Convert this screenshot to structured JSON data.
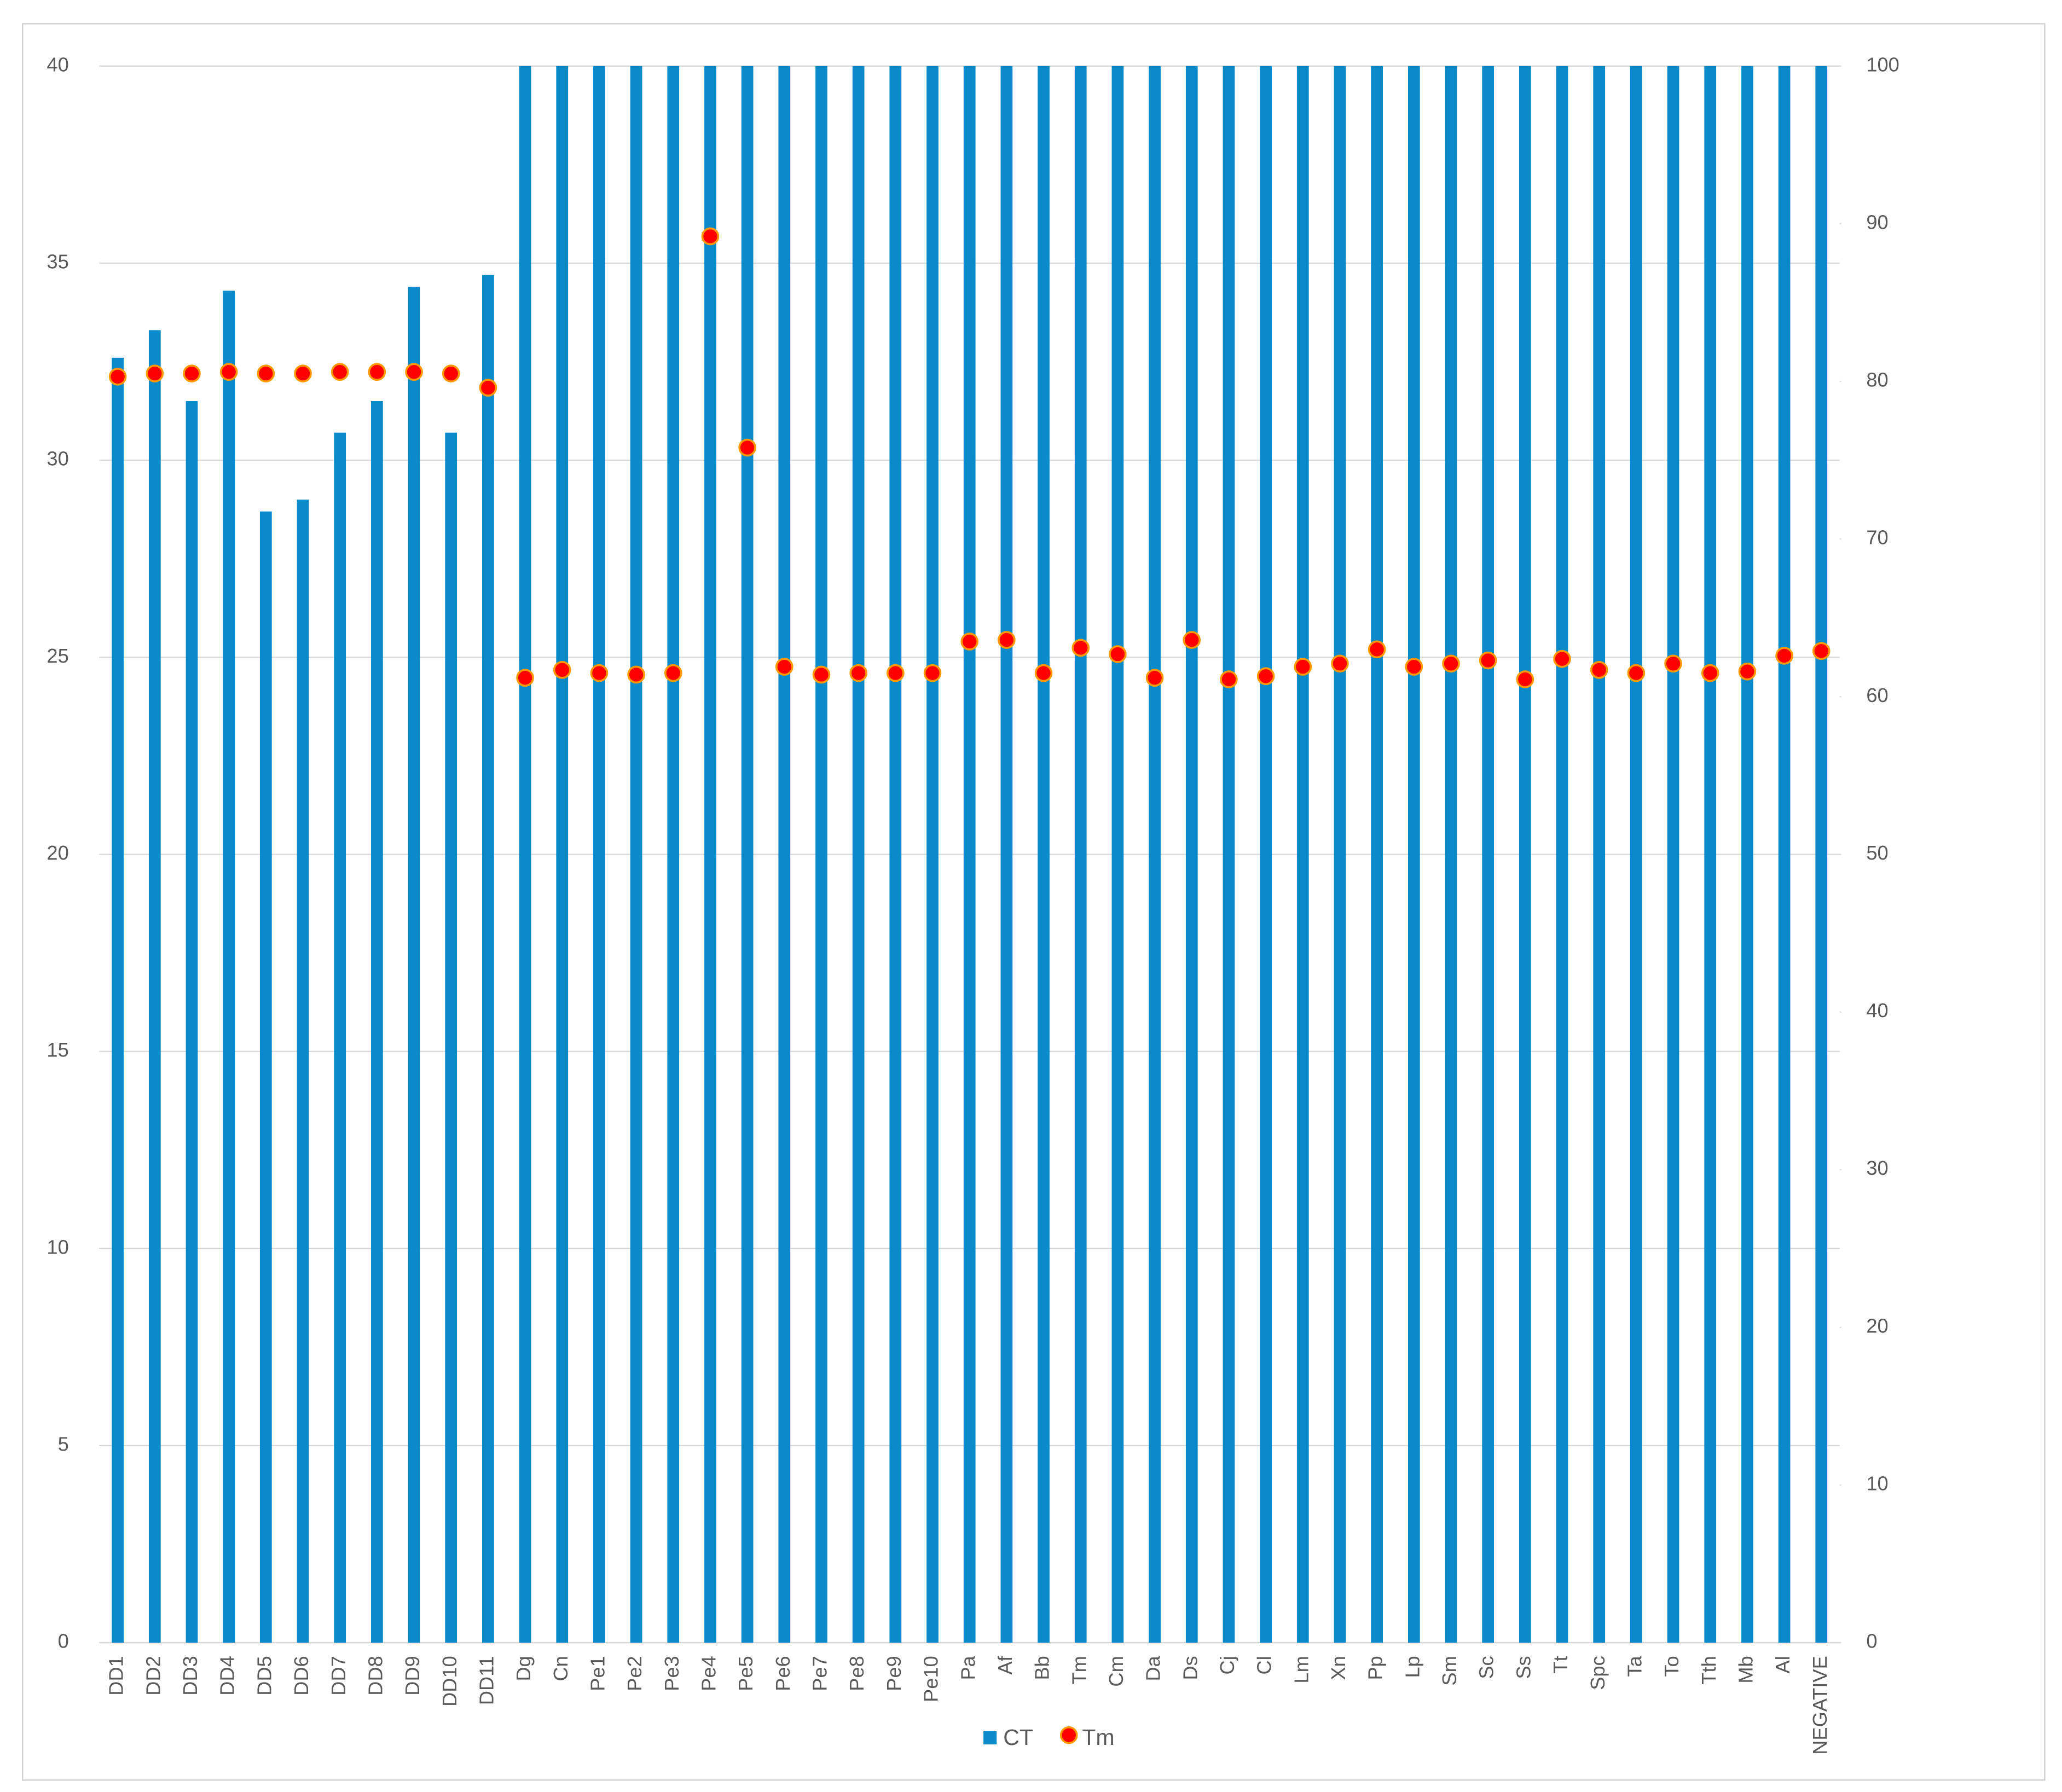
{
  "chart_data": {
    "type": "bar",
    "categories": [
      "DD1",
      "DD2",
      "DD3",
      "DD4",
      "DD5",
      "DD6",
      "DD7",
      "DD8",
      "DD9",
      "DD10",
      "DD11",
      "Dg",
      "Cn",
      "Pe1",
      "Pe2",
      "Pe3",
      "Pe4",
      "Pe5",
      "Pe6",
      "Pe7",
      "Pe8",
      "Pe9",
      "Pe10",
      "Pa",
      "Af",
      "Bb",
      "Tm",
      "Cm",
      "Da",
      "Ds",
      "Cj",
      "Cl",
      "Lm",
      "Xn",
      "Pp",
      "Lp",
      "Sm",
      "Sc",
      "Ss",
      "Tt",
      "Spc",
      "Ta",
      "To",
      "Tth",
      "Mb",
      "Al",
      "NEGATIVE"
    ],
    "series": [
      {
        "name": "CT",
        "type": "bar",
        "color": "#0b8ac9",
        "values": [
          32.6,
          33.3,
          31.5,
          34.3,
          28.7,
          29.0,
          30.7,
          31.5,
          34.4,
          30.7,
          34.7,
          40,
          40,
          40,
          40,
          40,
          40,
          40,
          40,
          40,
          40,
          40,
          40,
          40,
          40,
          40,
          40,
          40,
          40,
          40,
          40,
          40,
          40,
          40,
          40,
          40,
          40,
          40,
          40,
          40,
          40,
          40,
          40,
          40,
          40,
          40,
          40
        ]
      },
      {
        "name": "Tm",
        "type": "scatter",
        "axis": "y2",
        "color": "#ff0000",
        "values": [
          80.3,
          80.5,
          80.5,
          80.6,
          80.5,
          80.5,
          80.6,
          80.6,
          80.6,
          80.5,
          79.6,
          61.2,
          61.7,
          61.5,
          61.4,
          61.5,
          89.2,
          75.8,
          61.9,
          61.4,
          61.5,
          61.5,
          61.5,
          63.5,
          63.6,
          61.5,
          63.1,
          62.7,
          61.2,
          63.6,
          61.1,
          61.3,
          61.9,
          62.1,
          63.0,
          61.9,
          62.1,
          62.3,
          61.1,
          62.4,
          61.7,
          61.5,
          62.1,
          61.5,
          61.6,
          62.6,
          62.9
        ]
      }
    ],
    "ylim": [
      0,
      40
    ],
    "yticks": [
      0,
      5,
      10,
      15,
      20,
      25,
      30,
      35,
      40
    ],
    "y2lim": [
      0,
      100
    ],
    "y2ticks": [
      0,
      10,
      20,
      30,
      40,
      50,
      60,
      70,
      80,
      90,
      100
    ],
    "grid": true,
    "legend": "bottom"
  }
}
